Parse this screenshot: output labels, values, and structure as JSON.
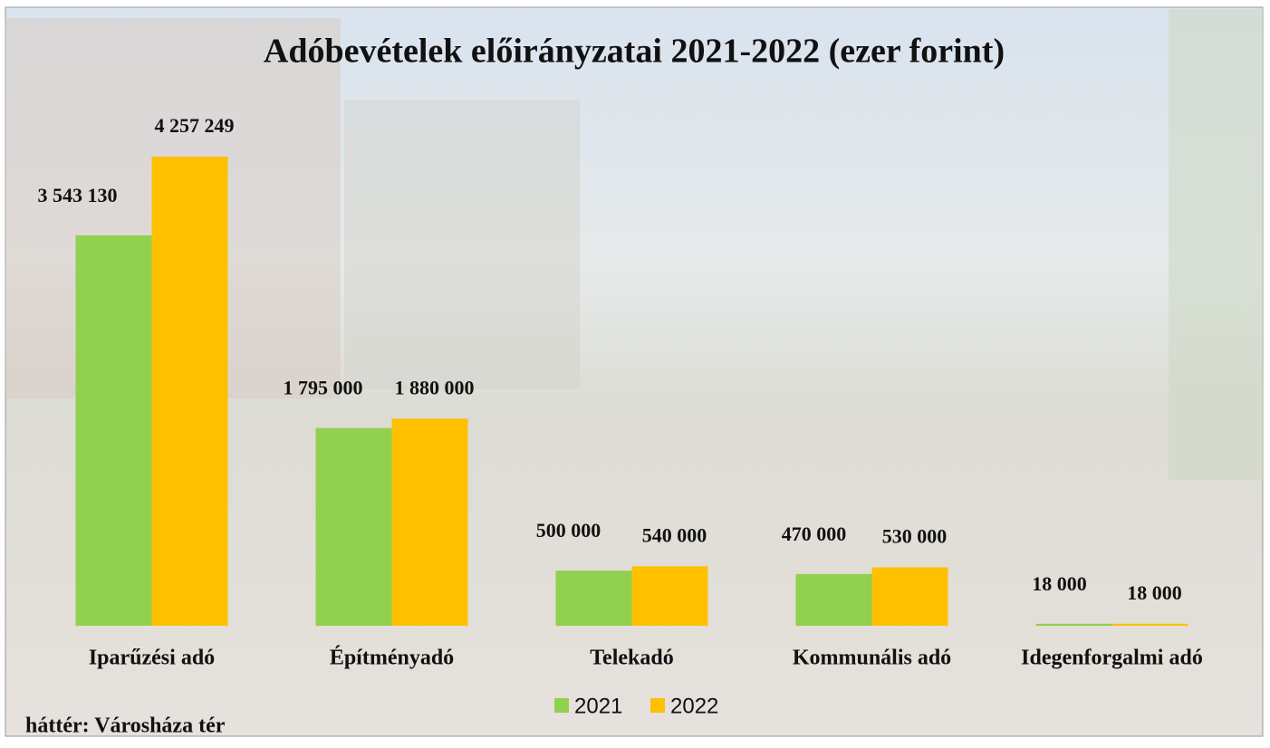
{
  "chart_data": {
    "type": "bar",
    "title": "Adóbevételek előirányzatai 2021-2022 (ezer forint)",
    "categories": [
      "Iparűzési adó",
      "Építményadó",
      "Telekadó",
      "Kommunális adó",
      "Idegenforgalmi adó"
    ],
    "series": [
      {
        "name": "2021",
        "color": "#92d050",
        "values": [
          3543130,
          1795000,
          500000,
          470000,
          18000
        ],
        "value_labels": [
          "3 543 130",
          "1 795 000",
          "500 000",
          "470 000",
          "18 000"
        ]
      },
      {
        "name": "2022",
        "color": "#ffc000",
        "values": [
          4257249,
          1880000,
          540000,
          530000,
          18000
        ],
        "value_labels": [
          "4 257 249",
          "1 880 000",
          "540 000",
          "530 000",
          "18 000"
        ]
      }
    ],
    "note": "háttér: Városháza tér"
  }
}
